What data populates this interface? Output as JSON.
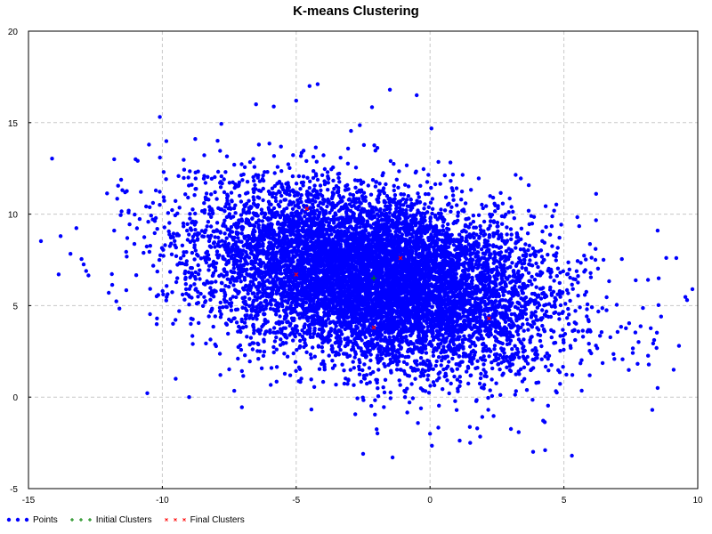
{
  "chart_data": {
    "type": "scatter",
    "title": "K-means Clustering",
    "xlabel": "",
    "ylabel": "",
    "xlim": [
      -15,
      10
    ],
    "ylim": [
      -5,
      20
    ],
    "x_ticks": [
      -15,
      -10,
      -5,
      0,
      5,
      10
    ],
    "y_ticks": [
      -5,
      0,
      5,
      10,
      15,
      20
    ],
    "grid": true,
    "legend_position": "bottom-left",
    "series": [
      {
        "name": "Points",
        "marker": "dot",
        "color": "#0000ff",
        "description": "Dense cloud of many thousands of points, elliptical blob tilted downward to the right; bulk spans x≈-10..7, y≈0..14; core centered near (-2, 6.5).",
        "cloud": {
          "center": [
            -2.0,
            6.5
          ],
          "std_major": 3.4,
          "std_minor": 2.2,
          "angle_deg": -24
        },
        "sample_points": [
          [
            -13.8,
            8.8
          ],
          [
            -12.0,
            5.7
          ],
          [
            -11.8,
            13.0
          ],
          [
            -11.0,
            13.0
          ],
          [
            -10.5,
            13.8
          ],
          [
            -10.2,
            4.3
          ],
          [
            -9.5,
            1.0
          ],
          [
            -9.0,
            0.0
          ],
          [
            -6.5,
            16.0
          ],
          [
            -5.0,
            16.2
          ],
          [
            -4.5,
            17.0
          ],
          [
            -4.2,
            17.1
          ],
          [
            -1.5,
            16.8
          ],
          [
            -0.5,
            16.5
          ],
          [
            8.5,
            9.1
          ],
          [
            9.2,
            7.6
          ],
          [
            9.8,
            5.9
          ],
          [
            9.6,
            5.3
          ],
          [
            9.3,
            2.8
          ],
          [
            9.1,
            1.5
          ],
          [
            8.5,
            0.5
          ],
          [
            8.3,
            -0.7
          ],
          [
            5.3,
            -3.2
          ],
          [
            -1.4,
            -3.3
          ],
          [
            -2.5,
            -3.1
          ],
          [
            0.0,
            -2.0
          ],
          [
            1.5,
            -2.5
          ],
          [
            4.3,
            -2.9
          ]
        ]
      },
      {
        "name": "Initial Clusters",
        "marker": "plus",
        "color": "#008000",
        "points": [
          [
            -2.1,
            6.5
          ]
        ]
      },
      {
        "name": "Final Clusters",
        "marker": "x",
        "color": "#ff0000",
        "points": [
          [
            -4.6,
            10.3
          ],
          [
            -1.1,
            7.6
          ],
          [
            -5.0,
            6.7
          ],
          [
            -2.1,
            3.8
          ],
          [
            2.2,
            4.3
          ]
        ]
      }
    ]
  }
}
